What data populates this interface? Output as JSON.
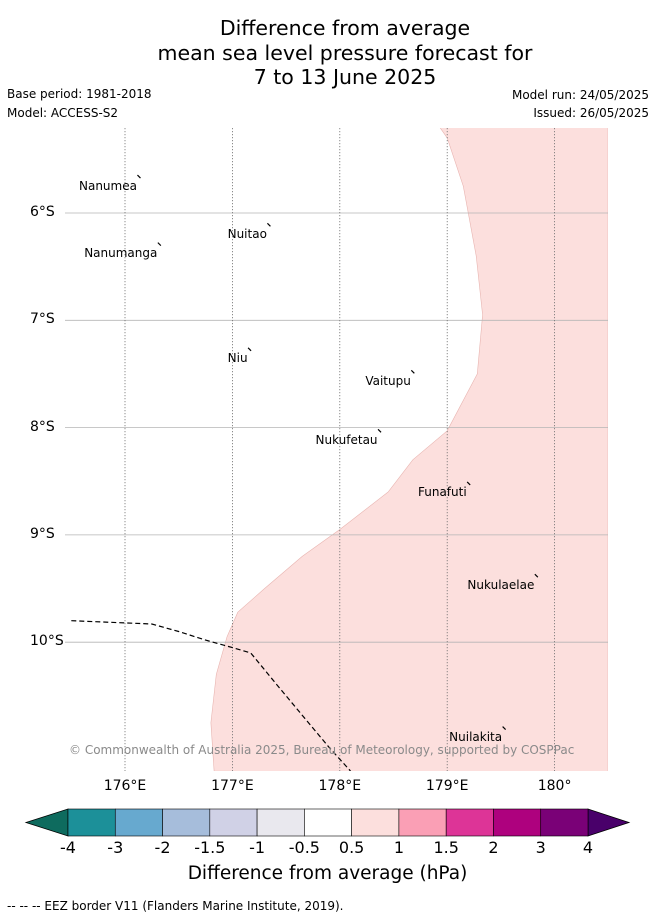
{
  "title_lines": [
    "Difference from average",
    "mean sea level pressure forecast for",
    "7 to 13 June 2025"
  ],
  "meta": {
    "base_period": "Base period: 1981-2018",
    "model": "Model: ACCESS-S2",
    "model_run": "Model run: 24/05/2025",
    "issued": "Issued: 26/05/2025"
  },
  "map": {
    "lon_range": [
      175.5,
      180.5
    ],
    "lat_range": [
      -11.2,
      -5.2
    ],
    "lat_labels": [
      {
        "lat": -6,
        "text": "6°S"
      },
      {
        "lat": -7,
        "text": "7°S"
      },
      {
        "lat": -8,
        "text": "8°S"
      },
      {
        "lat": -9,
        "text": "9°S"
      },
      {
        "lat": -10,
        "text": "10°S"
      }
    ],
    "lon_labels": [
      {
        "lon": 176,
        "text": "176°E"
      },
      {
        "lon": 177,
        "text": "177°E"
      },
      {
        "lon": 178,
        "text": "178°E"
      },
      {
        "lon": 179,
        "text": "179°E"
      },
      {
        "lon": 180,
        "text": "180°"
      }
    ],
    "places": [
      {
        "name": "Nanumea",
        "lon": 176.13,
        "lat": -5.66
      },
      {
        "name": "Nuitao",
        "lon": 177.34,
        "lat": -6.11
      },
      {
        "name": "Nanumanga",
        "lon": 176.32,
        "lat": -6.29
      },
      {
        "name": "Niu",
        "lon": 177.16,
        "lat": -7.27
      },
      {
        "name": "Vaitupu",
        "lon": 178.68,
        "lat": -7.48
      },
      {
        "name": "Nukufetau",
        "lon": 178.37,
        "lat": -8.03
      },
      {
        "name": "Funafuti",
        "lon": 179.2,
        "lat": -8.52
      },
      {
        "name": "Nukulaelae",
        "lon": 179.83,
        "lat": -9.38
      },
      {
        "name": "Nuilakita",
        "lon": 179.53,
        "lat": -10.8
      }
    ],
    "anomaly_shading": {
      "value_bin": "0.5 to 1",
      "color": "#fcdfdd",
      "west_edge": [
        [
          178.93,
          -5.2
        ],
        [
          179.0,
          -5.3
        ],
        [
          179.15,
          -5.75
        ],
        [
          179.27,
          -6.4
        ],
        [
          179.33,
          -6.95
        ],
        [
          179.28,
          -7.5
        ],
        [
          179.0,
          -8.03
        ],
        [
          178.68,
          -8.3
        ],
        [
          178.45,
          -8.6
        ],
        [
          178.0,
          -8.95
        ],
        [
          177.65,
          -9.2
        ],
        [
          177.3,
          -9.5
        ],
        [
          177.05,
          -9.72
        ],
        [
          176.95,
          -9.95
        ],
        [
          176.85,
          -10.3
        ],
        [
          176.8,
          -10.75
        ],
        [
          176.83,
          -11.2
        ]
      ]
    },
    "eez_border": [
      [
        175.5,
        -9.8
      ],
      [
        176.0,
        -9.82
      ],
      [
        176.25,
        -9.83
      ],
      [
        176.5,
        -9.9
      ],
      [
        176.75,
        -9.98
      ],
      [
        177.0,
        -10.05
      ],
      [
        177.17,
        -10.1
      ],
      [
        177.4,
        -10.38
      ],
      [
        177.65,
        -10.68
      ],
      [
        177.9,
        -10.98
      ],
      [
        178.1,
        -11.2
      ]
    ]
  },
  "copyright": "© Commonwealth of Australia 2025, Bureau of Meteorology, supported by COSPPac",
  "colorbar": {
    "label": "Difference from average (hPa)",
    "ticks": [
      "-4",
      "-3",
      "-2",
      "-1.5",
      "-1",
      "-0.5",
      "0.5",
      "1",
      "1.5",
      "2",
      "3",
      "4"
    ],
    "colors": [
      "#1c9099",
      "#67a9cf",
      "#a6bddb",
      "#d0d1e6",
      "#e9e8ee",
      "#ffffff",
      "#fcdfdd",
      "#fa9fb5",
      "#dd3497",
      "#ae017e",
      "#7a0177"
    ],
    "under_color": "#0e6b5e",
    "over_color": "#49006a"
  },
  "footnote": "-- -- -- EEZ border V11 (Flanders Marine Institute, 2019)."
}
